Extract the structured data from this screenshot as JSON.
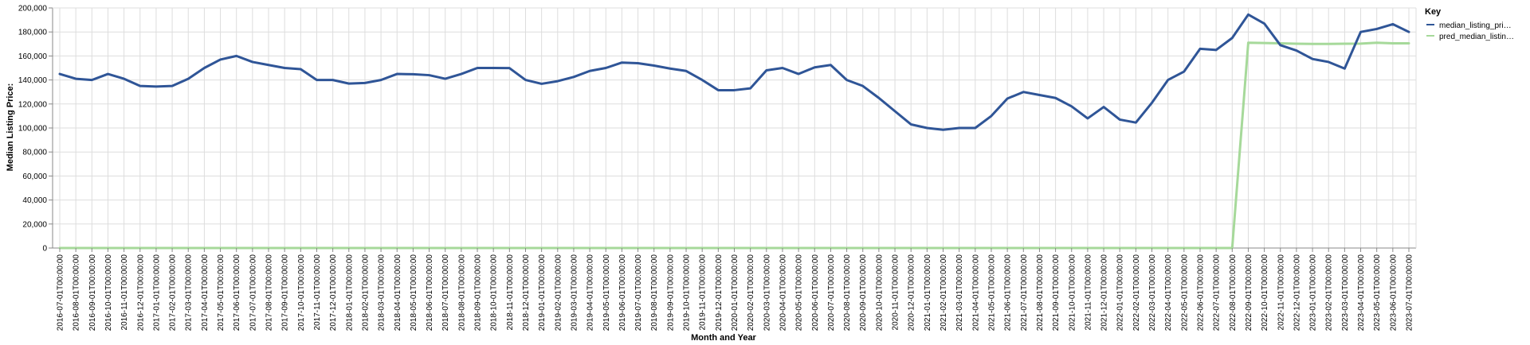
{
  "chart_data": {
    "type": "line",
    "xlabel": "Month and Year",
    "ylabel": "Median Listing Price:",
    "ylim": [
      0,
      200000
    ],
    "yticks": [
      "0",
      "20,000",
      "40,000",
      "60,000",
      "80,000",
      "100,000",
      "120,000",
      "140,000",
      "160,000",
      "180,000",
      "200,000"
    ],
    "grid": true,
    "legend": {
      "title": "Key",
      "position": "top-right",
      "entries": [
        "median_listing_pri…",
        "pred_median_listin…"
      ]
    },
    "x": [
      "2016-07-01T00:00:00",
      "2016-08-01T00:00:00",
      "2016-09-01T00:00:00",
      "2016-10-01T00:00:00",
      "2016-11-01T00:00:00",
      "2016-12-01T00:00:00",
      "2017-01-01T00:00:00",
      "2017-02-01T00:00:00",
      "2017-03-01T00:00:00",
      "2017-04-01T00:00:00",
      "2017-05-01T00:00:00",
      "2017-06-01T00:00:00",
      "2017-07-01T00:00:00",
      "2017-08-01T00:00:00",
      "2017-09-01T00:00:00",
      "2017-10-01T00:00:00",
      "2017-11-01T00:00:00",
      "2017-12-01T00:00:00",
      "2018-01-01T00:00:00",
      "2018-02-01T00:00:00",
      "2018-03-01T00:00:00",
      "2018-04-01T00:00:00",
      "2018-05-01T00:00:00",
      "2018-06-01T00:00:00",
      "2018-07-01T00:00:00",
      "2018-08-01T00:00:00",
      "2018-09-01T00:00:00",
      "2018-10-01T00:00:00",
      "2018-11-01T00:00:00",
      "2018-12-01T00:00:00",
      "2019-01-01T00:00:00",
      "2019-02-01T00:00:00",
      "2019-03-01T00:00:00",
      "2019-04-01T00:00:00",
      "2019-05-01T00:00:00",
      "2019-06-01T00:00:00",
      "2019-07-01T00:00:00",
      "2019-08-01T00:00:00",
      "2019-09-01T00:00:00",
      "2019-10-01T00:00:00",
      "2019-11-01T00:00:00",
      "2019-12-01T00:00:00",
      "2020-01-01T00:00:00",
      "2020-02-01T00:00:00",
      "2020-03-01T00:00:00",
      "2020-04-01T00:00:00",
      "2020-05-01T00:00:00",
      "2020-06-01T00:00:00",
      "2020-07-01T00:00:00",
      "2020-08-01T00:00:00",
      "2020-09-01T00:00:00",
      "2020-10-01T00:00:00",
      "2020-11-01T00:00:00",
      "2020-12-01T00:00:00",
      "2021-01-01T00:00:00",
      "2021-02-01T00:00:00",
      "2021-03-01T00:00:00",
      "2021-04-01T00:00:00",
      "2021-05-01T00:00:00",
      "2021-06-01T00:00:00",
      "2021-07-01T00:00:00",
      "2021-08-01T00:00:00",
      "2021-09-01T00:00:00",
      "2021-10-01T00:00:00",
      "2021-11-01T00:00:00",
      "2021-12-01T00:00:00",
      "2022-01-01T00:00:00",
      "2022-02-01T00:00:00",
      "2022-03-01T00:00:00",
      "2022-04-01T00:00:00",
      "2022-05-01T00:00:00",
      "2022-06-01T00:00:00",
      "2022-07-01T00:00:00",
      "2022-08-01T00:00:00",
      "2022-09-01T00:00:00",
      "2022-10-01T00:00:00",
      "2022-11-01T00:00:00",
      "2022-12-01T00:00:00",
      "2023-01-01T00:00:00",
      "2023-02-01T00:00:00",
      "2023-03-01T00:00:00",
      "2023-04-01T00:00:00",
      "2023-05-01T00:00:00",
      "2023-06-01T00:00:00",
      "2023-07-01T00:00:00"
    ],
    "series": [
      {
        "name": "median_listing_pri…",
        "color": "#2f5597",
        "values": [
          145000,
          141000,
          140000,
          145000,
          141000,
          135000,
          134500,
          135000,
          141000,
          150000,
          157000,
          160000,
          155000,
          152500,
          150000,
          149000,
          140000,
          140000,
          137000,
          137500,
          140000,
          145000,
          144800,
          144000,
          141000,
          145000,
          150000,
          150000,
          149900,
          140000,
          136800,
          139000,
          142500,
          147500,
          150000,
          154500,
          154000,
          152000,
          149500,
          147500,
          140000,
          131500,
          131500,
          133000,
          148000,
          150000,
          145000,
          150500,
          152500,
          140000,
          135000,
          125000,
          114000,
          103000,
          100000,
          98500,
          100000,
          100000,
          110000,
          124500,
          130000,
          127500,
          125000,
          118000,
          108000,
          117500,
          107000,
          104500,
          121000,
          140000,
          147000,
          166000,
          165000,
          175000,
          194500,
          187000,
          169000,
          164500,
          157500,
          155000,
          149500,
          180000,
          182500,
          186500,
          180000
        ]
      },
      {
        "name": "pred_median_listin…",
        "color": "#a6d99a",
        "values": [
          0,
          0,
          0,
          0,
          0,
          0,
          0,
          0,
          0,
          0,
          0,
          0,
          0,
          0,
          0,
          0,
          0,
          0,
          0,
          0,
          0,
          0,
          0,
          0,
          0,
          0,
          0,
          0,
          0,
          0,
          0,
          0,
          0,
          0,
          0,
          0,
          0,
          0,
          0,
          0,
          0,
          0,
          0,
          0,
          0,
          0,
          0,
          0,
          0,
          0,
          0,
          0,
          0,
          0,
          0,
          0,
          0,
          0,
          0,
          0,
          0,
          0,
          0,
          0,
          0,
          0,
          0,
          0,
          0,
          0,
          0,
          0,
          0,
          0,
          171000,
          170800,
          170500,
          170200,
          170000,
          170000,
          170200,
          170300,
          171000,
          170500,
          170500
        ]
      }
    ]
  }
}
